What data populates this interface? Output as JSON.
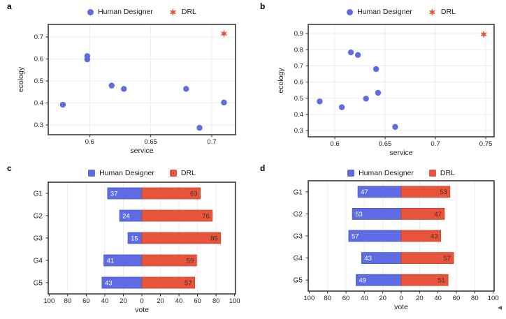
{
  "figure": {
    "background": "#ffffff"
  },
  "colors": {
    "human": "#5D6BE5",
    "drl": "#E8543B",
    "human_edge": "#4956C8",
    "drl_edge": "#C9432D",
    "grid": "#E8ECF3",
    "frame": "#2E2E2E",
    "text": "#1E1E1E",
    "value_on_human": "#FFFFFF",
    "value_on_drl": "#47302A"
  },
  "chart_data": [
    {
      "id": "a",
      "panel_label": "a",
      "type": "scatter",
      "xlabel": "service",
      "ylabel": "ecology",
      "xlim": [
        0.566,
        0.7195
      ],
      "ylim": [
        0.2556,
        0.757
      ],
      "xticks": {
        "values": [
          0.6,
          0.65,
          0.7
        ],
        "labels": [
          "0.6",
          "0.65",
          "0.7"
        ]
      },
      "yticks": {
        "values": [
          0.3,
          0.4,
          0.5,
          0.6,
          0.7
        ],
        "labels": [
          "0.3",
          "0.4",
          "0.5",
          "0.6",
          "0.7"
        ]
      },
      "grid": true,
      "legend": {
        "position": "top-center",
        "items": [
          {
            "label": "Human Designer",
            "marker": "circle",
            "color_key": "human"
          },
          {
            "label": "DRL",
            "marker": "star",
            "color_key": "drl"
          }
        ]
      },
      "series": [
        {
          "name": "Human Designer",
          "marker": "circle",
          "color_key": "human",
          "points": [
            [
              0.578,
              0.392
            ],
            [
              0.598,
              0.613
            ],
            [
              0.598,
              0.598
            ],
            [
              0.618,
              0.479
            ],
            [
              0.628,
              0.464
            ],
            [
              0.679,
              0.464
            ],
            [
              0.69,
              0.287
            ],
            [
              0.71,
              0.402
            ]
          ]
        },
        {
          "name": "DRL",
          "marker": "star",
          "color_key": "drl",
          "points": [
            [
              0.71,
              0.715
            ]
          ]
        }
      ]
    },
    {
      "id": "b",
      "panel_label": "b",
      "type": "scatter",
      "xlabel": "service",
      "ylabel": "ecology",
      "xlim": [
        0.5736,
        0.7583
      ],
      "ylim": [
        0.261,
        0.956
      ],
      "xticks": {
        "values": [
          0.6,
          0.65,
          0.7,
          0.75
        ],
        "labels": [
          "0.6",
          "0.65",
          "0.7",
          "0.75"
        ]
      },
      "yticks": {
        "values": [
          0.3,
          0.4,
          0.5,
          0.6,
          0.7,
          0.8,
          0.9
        ],
        "labels": [
          "0.3",
          "0.4",
          "0.5",
          "0.6",
          "0.7",
          "0.8",
          "0.9"
        ]
      },
      "grid": true,
      "legend": {
        "position": "top-center",
        "items": [
          {
            "label": "Human Designer",
            "marker": "circle",
            "color_key": "human"
          },
          {
            "label": "DRL",
            "marker": "star",
            "color_key": "drl"
          }
        ]
      },
      "series": [
        {
          "name": "Human Designer",
          "marker": "circle",
          "color_key": "human",
          "points": [
            [
              0.585,
              0.48
            ],
            [
              0.607,
              0.444
            ],
            [
              0.616,
              0.783
            ],
            [
              0.623,
              0.767
            ],
            [
              0.631,
              0.497
            ],
            [
              0.641,
              0.68
            ],
            [
              0.643,
              0.533
            ],
            [
              0.66,
              0.322
            ]
          ]
        },
        {
          "name": "DRL",
          "marker": "star",
          "color_key": "drl",
          "points": [
            [
              0.748,
              0.895
            ]
          ]
        }
      ]
    },
    {
      "id": "c",
      "panel_label": "c",
      "type": "diverging_bar",
      "xlabel": "vote",
      "categories": [
        "G1",
        "G2",
        "G3",
        "G4",
        "G5"
      ],
      "xlim": [
        -101,
        101
      ],
      "xticks": {
        "values": [
          -100,
          -80,
          -60,
          -40,
          -20,
          0,
          20,
          40,
          60,
          80,
          100
        ],
        "labels": [
          "100",
          "80",
          "60",
          "40",
          "20",
          "0",
          "20",
          "40",
          "60",
          "80",
          "100"
        ]
      },
      "grid": true,
      "legend": {
        "position": "top-center",
        "items": [
          {
            "label": "Human Designer",
            "marker": "square",
            "color_key": "human"
          },
          {
            "label": "DRL",
            "marker": "square",
            "color_key": "drl"
          }
        ]
      },
      "series": [
        {
          "name": "Human Designer",
          "side": "left",
          "color_key": "human",
          "values": [
            37,
            24,
            15,
            41,
            43
          ],
          "value_labels": [
            "37",
            "24",
            "15",
            "41",
            "43"
          ]
        },
        {
          "name": "DRL",
          "side": "right",
          "color_key": "drl",
          "values": [
            63,
            76,
            85,
            59,
            57
          ],
          "value_labels": [
            "63",
            "76",
            "85",
            "59",
            "57"
          ]
        }
      ]
    },
    {
      "id": "d",
      "panel_label": "d",
      "type": "diverging_bar",
      "xlabel": "vote",
      "categories": [
        "G1",
        "G2",
        "G3",
        "G4",
        "G5"
      ],
      "xlim": [
        -101,
        101
      ],
      "xticks": {
        "values": [
          -100,
          -80,
          -60,
          -40,
          -20,
          0,
          20,
          40,
          60,
          80,
          100
        ],
        "labels": [
          "100",
          "80",
          "60",
          "40",
          "20",
          "0",
          "20",
          "40",
          "60",
          "80",
          "100"
        ]
      },
      "grid": true,
      "legend": {
        "position": "top-center",
        "items": [
          {
            "label": "Human Designer",
            "marker": "square",
            "color_key": "human"
          },
          {
            "label": "DRL",
            "marker": "square",
            "color_key": "drl"
          }
        ]
      },
      "series": [
        {
          "name": "Human Designer",
          "side": "left",
          "color_key": "human",
          "values": [
            47,
            53,
            57,
            43,
            49
          ],
          "value_labels": [
            "47",
            "53",
            "57",
            "43",
            "49"
          ]
        },
        {
          "name": "DRL",
          "side": "right",
          "color_key": "drl",
          "values": [
            53,
            47,
            43,
            57,
            51
          ],
          "value_labels": [
            "53",
            "47",
            "43",
            "57",
            "51"
          ]
        }
      ]
    }
  ]
}
